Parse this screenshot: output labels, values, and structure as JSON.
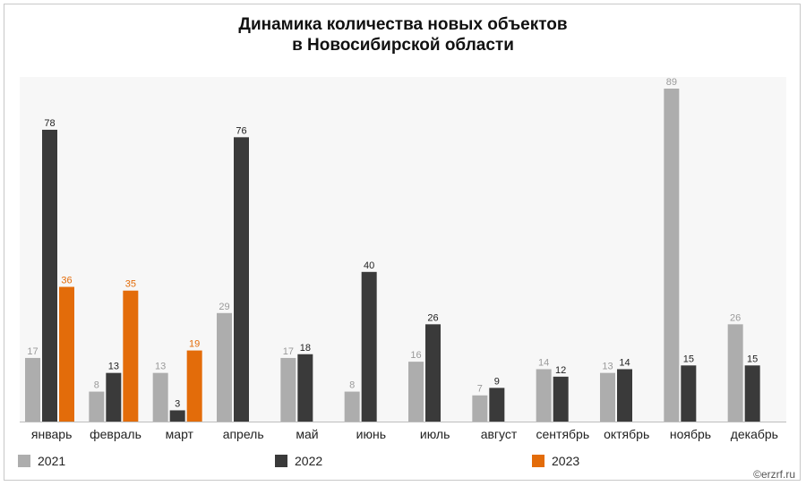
{
  "title_line1": "Динамика количества новых объектов",
  "title_line2": "в Новосибирской области",
  "watermark": "©erzrf.ru",
  "colors": {
    "2021": "#adadad",
    "2022": "#3a3a3a",
    "2023": "#e36c0a",
    "plot_bg": "#f7f7f7"
  },
  "chart_data": {
    "type": "bar",
    "title": "Динамика количества новых объектов в Новосибирской области",
    "categories": [
      "январь",
      "февраль",
      "март",
      "апрель",
      "май",
      "июнь",
      "июль",
      "август",
      "сентябрь",
      "октябрь",
      "ноябрь",
      "декабрь"
    ],
    "series": [
      {
        "name": "2021",
        "values": [
          17,
          8,
          13,
          29,
          17,
          8,
          16,
          7,
          14,
          13,
          89,
          26
        ]
      },
      {
        "name": "2022",
        "values": [
          78,
          13,
          3,
          76,
          18,
          40,
          26,
          9,
          12,
          14,
          15,
          15
        ]
      },
      {
        "name": "2023",
        "values": [
          36,
          35,
          19,
          null,
          null,
          null,
          null,
          null,
          null,
          null,
          null,
          null
        ]
      }
    ],
    "ylim": [
      0,
      89
    ],
    "grid": false,
    "legend": "bottom"
  }
}
